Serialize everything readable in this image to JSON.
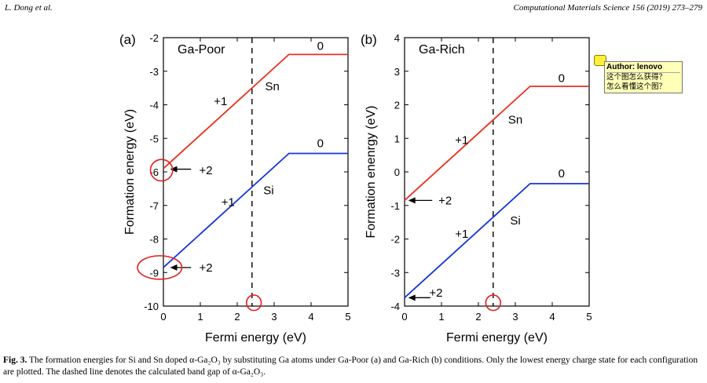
{
  "header": {
    "left": "L. Dong et al.",
    "right": "Computational Materials Science 156 (2019) 273–279"
  },
  "chart_data": [
    {
      "type": "line",
      "panel_label": "(a)",
      "title": "Ga-Poor",
      "xlabel": "Fermi energy (eV)",
      "ylabel": "Formation energy (eV)",
      "xlim": [
        0,
        5
      ],
      "ylim": [
        -10,
        -2
      ],
      "xticks": [
        "0",
        "1",
        "2",
        "3",
        "4",
        "5"
      ],
      "yticks": [
        "-2",
        "-3",
        "-4",
        "-5",
        "-6",
        "-7",
        "-8",
        "-9",
        "-10"
      ],
      "band_gap": 2.4,
      "series": [
        {
          "name": "Sn",
          "color": "#e8311e",
          "x": [
            0,
            3.4,
            5
          ],
          "y": [
            -5.9,
            -2.5,
            -2.5
          ]
        },
        {
          "name": "Si",
          "color": "#1636d6",
          "x": [
            0,
            3.4,
            5
          ],
          "y": [
            -8.85,
            -5.45,
            -5.45
          ]
        }
      ],
      "annotations": [
        {
          "text": "0",
          "x": 4.25,
          "y": -2.25,
          "color": "#000"
        },
        {
          "text": "+1",
          "x": 1.55,
          "y": -3.9,
          "color": "#000"
        },
        {
          "text": "Sn",
          "x": 2.95,
          "y": -3.45,
          "color": "#000"
        },
        {
          "text": "+2",
          "x": 1.15,
          "y": -5.95,
          "color": "#000"
        },
        {
          "text": "0",
          "x": 4.25,
          "y": -5.15,
          "color": "#000"
        },
        {
          "text": "+1",
          "x": 1.75,
          "y": -6.9,
          "color": "#000"
        },
        {
          "text": "Si",
          "x": 2.85,
          "y": -6.55,
          "color": "#000"
        },
        {
          "text": "+2",
          "x": 1.15,
          "y": -8.85,
          "color": "#000"
        }
      ],
      "arrows": [
        {
          "from": [
            0.75,
            -5.92
          ],
          "to": [
            0.18,
            -5.92
          ]
        },
        {
          "from": [
            0.75,
            -8.85
          ],
          "to": [
            0.18,
            -8.85
          ]
        }
      ],
      "circles": [
        {
          "x": -0.05,
          "y": -5.95,
          "rx": 0.3,
          "ry": 0.32
        },
        {
          "x": -0.1,
          "y": -8.85,
          "rx": 0.6,
          "ry": 0.35
        },
        {
          "x": 2.45,
          "y": -9.9,
          "rx": 0.2,
          "ry": 0.23
        }
      ]
    },
    {
      "type": "line",
      "panel_label": "(b)",
      "title": "Ga-Rich",
      "xlabel": "Fermi energy (eV)",
      "ylabel": "Formation enenrgy (eV)",
      "xlim": [
        0,
        5
      ],
      "ylim": [
        -4,
        4
      ],
      "xticks": [
        "0",
        "1",
        "2",
        "3",
        "4",
        "5"
      ],
      "yticks": [
        "4",
        "3",
        "2",
        "1",
        "0",
        "-1",
        "-2",
        "-3",
        "-4"
      ],
      "band_gap": 2.4,
      "series": [
        {
          "name": "Sn",
          "color": "#e8311e",
          "x": [
            0,
            3.4,
            5
          ],
          "y": [
            -0.85,
            2.55,
            2.55
          ]
        },
        {
          "name": "Si",
          "color": "#1636d6",
          "x": [
            0,
            3.4,
            5
          ],
          "y": [
            -3.75,
            -0.35,
            -0.35
          ]
        }
      ],
      "annotations": [
        {
          "text": "0",
          "x": 4.25,
          "y": 2.8,
          "color": "#000"
        },
        {
          "text": "+1",
          "x": 1.55,
          "y": 0.95,
          "color": "#000"
        },
        {
          "text": "Sn",
          "x": 3.0,
          "y": 1.55,
          "color": "#000"
        },
        {
          "text": "+2",
          "x": 1.1,
          "y": -0.85,
          "color": "#000"
        },
        {
          "text": "0",
          "x": 4.25,
          "y": -0.05,
          "color": "#000"
        },
        {
          "text": "+1",
          "x": 1.55,
          "y": -1.85,
          "color": "#000"
        },
        {
          "text": "Si",
          "x": 3.0,
          "y": -1.45,
          "color": "#000"
        },
        {
          "text": "+2",
          "x": 0.85,
          "y": -3.6,
          "color": "#000"
        }
      ],
      "arrows": [
        {
          "from": [
            0.75,
            -0.85
          ],
          "to": [
            0.1,
            -0.85
          ]
        },
        {
          "from": [
            0.7,
            -3.75
          ],
          "to": [
            0.1,
            -3.75
          ]
        }
      ],
      "circles": [
        {
          "x": 2.4,
          "y": -3.9,
          "rx": 0.2,
          "ry": 0.23
        }
      ]
    }
  ],
  "note": {
    "author": "Author: lenovo",
    "lines": [
      "这个图怎么获得？",
      "怎么看懂这个图？"
    ]
  },
  "caption": {
    "fig_label": "Fig. 3.",
    "text": " The formation energies for Si and Sn doped α-Ga₂O₃ by substituting Ga atoms under Ga-Poor (a) and Ga-Rich (b) conditions. Only the lowest energy charge state for each configuration are plotted. The dashed line denotes the calculated band gap of α-Ga₂O₃."
  }
}
